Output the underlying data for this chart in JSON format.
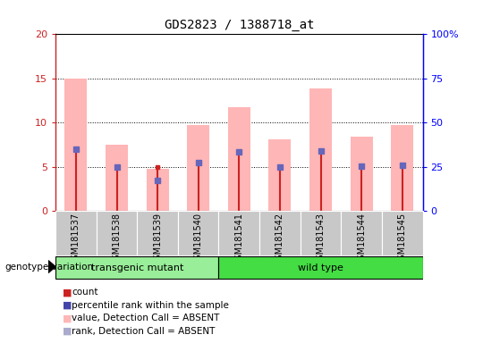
{
  "title": "GDS2823 / 1388718_at",
  "samples": [
    "GSM181537",
    "GSM181538",
    "GSM181539",
    "GSM181540",
    "GSM181541",
    "GSM181542",
    "GSM181543",
    "GSM181544",
    "GSM181545"
  ],
  "pink_bars": [
    15.0,
    7.5,
    4.8,
    9.7,
    11.7,
    8.1,
    13.9,
    8.4,
    9.7
  ],
  "blue_dots": [
    7.0,
    5.0,
    3.5,
    5.5,
    6.7,
    5.0,
    6.8,
    5.1,
    5.2
  ],
  "red_dots": [
    7.0,
    5.0,
    5.0,
    5.5,
    6.7,
    5.0,
    6.8,
    5.1,
    5.2
  ],
  "ylim_left": [
    0,
    20
  ],
  "ylim_right": [
    0,
    100
  ],
  "yticks_left": [
    0,
    5,
    10,
    15,
    20
  ],
  "yticks_right": [
    0,
    25,
    50,
    75,
    100
  ],
  "yticklabels_left": [
    "0",
    "5",
    "10",
    "15",
    "20"
  ],
  "yticklabels_right": [
    "0",
    "25",
    "50",
    "75",
    "100%"
  ],
  "group1_label": "transgenic mutant",
  "group2_label": "wild type",
  "group1_indices": [
    0,
    1,
    2,
    3
  ],
  "group2_indices": [
    4,
    5,
    6,
    7,
    8
  ],
  "bar_color_absent": "#FFB6B6",
  "bar_width": 0.55,
  "red_line_color": "#CC2222",
  "blue_dot_color": "#6666BB",
  "group1_bg": "#99EE99",
  "group2_bg": "#44DD44",
  "xticklabel_bg": "#C8C8C8",
  "legend_colors": [
    "#CC2222",
    "#4444AA",
    "#FFB6B6",
    "#AAAACC"
  ],
  "legend_labels": [
    "count",
    "percentile rank within the sample",
    "value, Detection Call = ABSENT",
    "rank, Detection Call = ABSENT"
  ],
  "genotype_label": "genotype/variation"
}
